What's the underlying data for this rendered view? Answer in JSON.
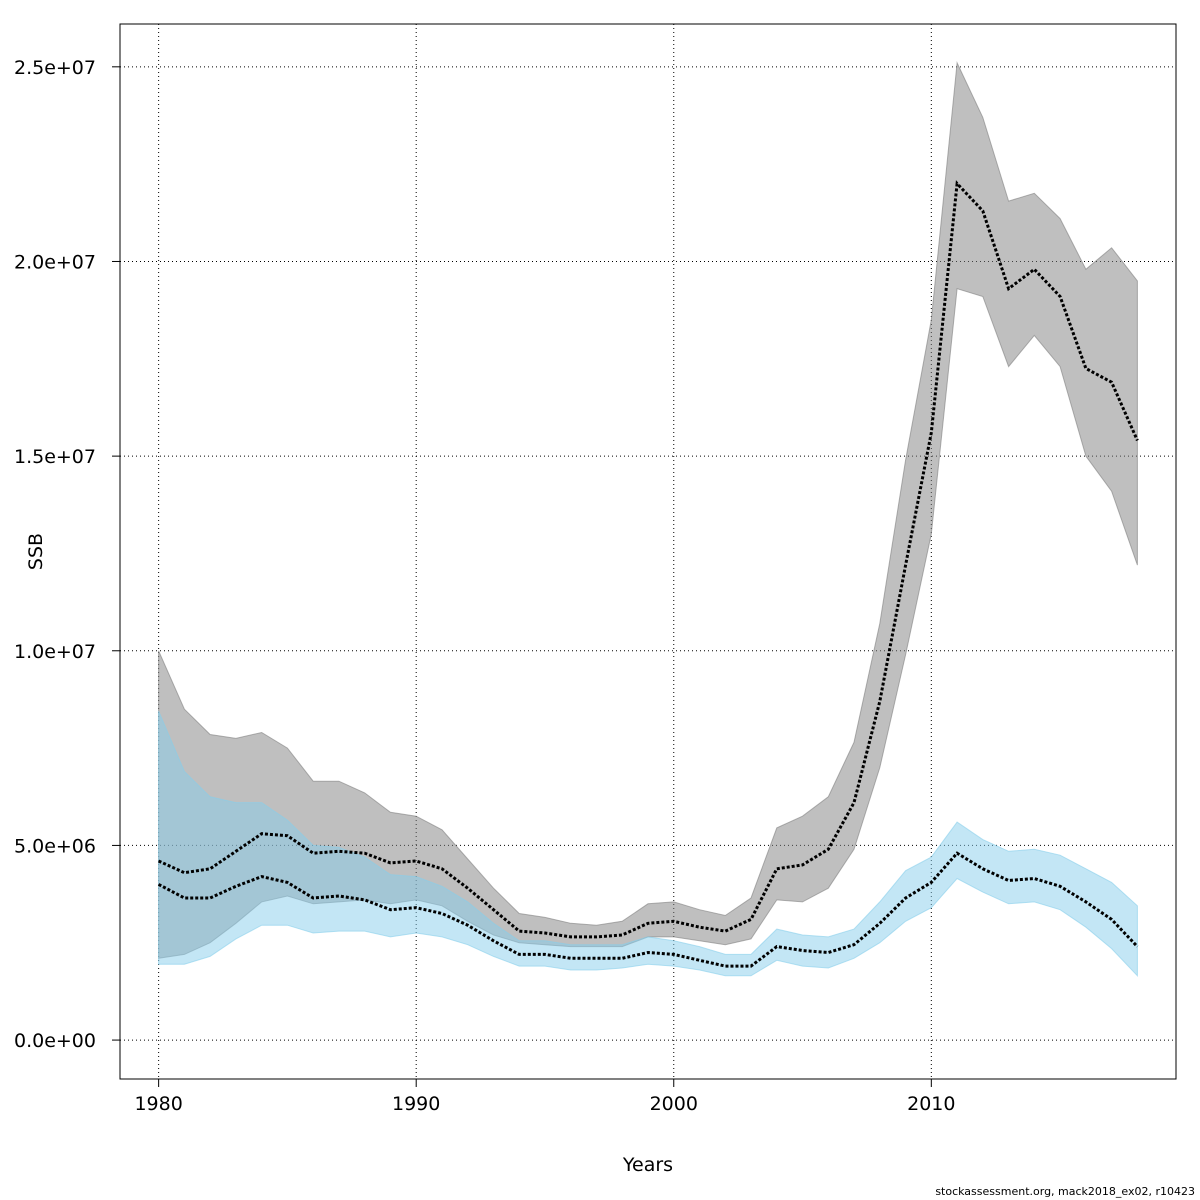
{
  "chart_data": {
    "type": "area",
    "title": "",
    "xlabel": "Years",
    "ylabel": "SSB",
    "xlim": [
      1978.5,
      2019.5
    ],
    "ylim": [
      -1000000,
      26100000
    ],
    "x_ticks": [
      1980,
      1990,
      2000,
      2010
    ],
    "x_tick_labels": [
      "1980",
      "1990",
      "2000",
      "2010"
    ],
    "y_ticks": [
      0,
      5000000,
      10000000,
      15000000,
      20000000,
      25000000
    ],
    "y_tick_labels": [
      "0.0e+00",
      "5.0e+06",
      "1.0e+07",
      "1.5e+07",
      "2.0e+07",
      "2.5e+07"
    ],
    "grid": true,
    "x": [
      1980,
      1981,
      1982,
      1983,
      1984,
      1985,
      1986,
      1987,
      1988,
      1989,
      1990,
      1991,
      1992,
      1993,
      1994,
      1995,
      1996,
      1997,
      1998,
      1999,
      2000,
      2001,
      2002,
      2003,
      2004,
      2005,
      2006,
      2007,
      2008,
      2009,
      2010,
      2011,
      2012,
      2013,
      2014,
      2015,
      2016,
      2017,
      2018
    ],
    "series": [
      {
        "color": "#000000",
        "band_color": "#808080",
        "values": [
          4600000,
          4300000,
          4400000,
          4850000,
          5300000,
          5250000,
          4800000,
          4850000,
          4800000,
          4550000,
          4600000,
          4400000,
          3900000,
          3350000,
          2800000,
          2750000,
          2650000,
          2650000,
          2700000,
          3000000,
          3050000,
          2900000,
          2800000,
          3100000,
          4400000,
          4500000,
          4900000,
          6100000,
          8700000,
          12200000,
          15600000,
          22000000,
          21300000,
          19300000,
          19800000,
          19100000,
          17250000,
          16900000,
          15400000
        ],
        "lower": [
          2100000,
          2200000,
          2500000,
          3000000,
          3550000,
          3700000,
          3500000,
          3550000,
          3600000,
          3500000,
          3600000,
          3450000,
          3050000,
          2700000,
          2500000,
          2450000,
          2400000,
          2400000,
          2400000,
          2650000,
          2650000,
          2550000,
          2450000,
          2600000,
          3600000,
          3550000,
          3900000,
          4900000,
          7000000,
          9900000,
          13000000,
          19300000,
          19100000,
          17300000,
          18100000,
          17300000,
          15000000,
          14100000,
          12200000
        ],
        "upper": [
          10000000,
          8500000,
          7850000,
          7750000,
          7900000,
          7500000,
          6650000,
          6650000,
          6350000,
          5850000,
          5750000,
          5400000,
          4650000,
          3900000,
          3250000,
          3150000,
          3000000,
          2950000,
          3050000,
          3500000,
          3550000,
          3350000,
          3200000,
          3650000,
          5450000,
          5750000,
          6250000,
          7650000,
          10700000,
          14900000,
          18500000,
          25100000,
          23700000,
          21550000,
          21750000,
          21100000,
          19800000,
          20350000,
          19500000
        ]
      },
      {
        "color": "#000000",
        "band_color": "#87ceeb",
        "values": [
          4000000,
          3650000,
          3650000,
          3950000,
          4200000,
          4050000,
          3650000,
          3700000,
          3600000,
          3350000,
          3400000,
          3250000,
          2950000,
          2550000,
          2200000,
          2200000,
          2100000,
          2100000,
          2100000,
          2250000,
          2200000,
          2050000,
          1900000,
          1900000,
          2400000,
          2300000,
          2250000,
          2450000,
          3000000,
          3650000,
          4050000,
          4800000,
          4400000,
          4100000,
          4150000,
          3950000,
          3550000,
          3100000,
          2400000
        ],
        "lower": [
          1950000,
          1950000,
          2150000,
          2600000,
          2950000,
          2950000,
          2750000,
          2800000,
          2800000,
          2650000,
          2750000,
          2650000,
          2450000,
          2150000,
          1900000,
          1900000,
          1800000,
          1800000,
          1850000,
          1950000,
          1900000,
          1800000,
          1650000,
          1650000,
          2050000,
          1900000,
          1850000,
          2100000,
          2500000,
          3050000,
          3400000,
          4150000,
          3800000,
          3500000,
          3550000,
          3350000,
          2900000,
          2350000,
          1650000
        ],
        "upper": [
          8450000,
          6900000,
          6250000,
          6100000,
          6100000,
          5650000,
          5000000,
          4950000,
          4700000,
          4250000,
          4200000,
          3950000,
          3550000,
          3000000,
          2550000,
          2550000,
          2450000,
          2450000,
          2450000,
          2650000,
          2550000,
          2400000,
          2200000,
          2200000,
          2850000,
          2700000,
          2650000,
          2850000,
          3550000,
          4350000,
          4700000,
          5600000,
          5150000,
          4850000,
          4900000,
          4750000,
          4400000,
          4050000,
          3450000
        ]
      }
    ]
  },
  "footer": "stockassessment.org, mack2018_ex02, r10423"
}
